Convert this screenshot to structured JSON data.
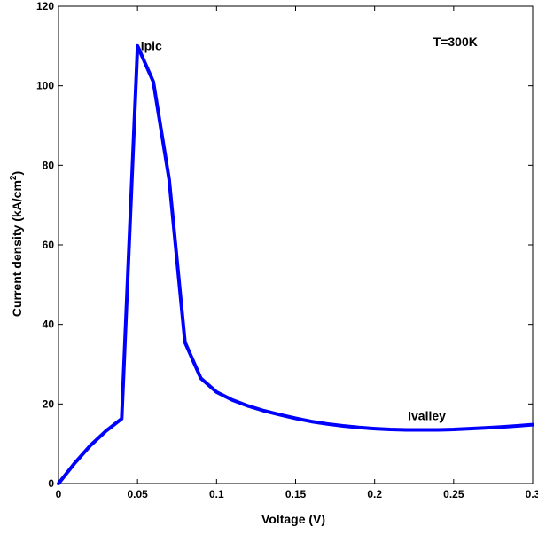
{
  "chart_data": {
    "type": "line",
    "title": "",
    "xlabel": "Voltage (V)",
    "ylabel_main": "Current density (kA/cm",
    "ylabel_sup": "2",
    "ylabel_close": ")",
    "xlim": [
      0,
      0.3
    ],
    "ylim": [
      0,
      120
    ],
    "x_ticks": [
      0,
      0.05,
      0.1,
      0.15,
      0.2,
      0.25,
      0.3
    ],
    "x_tick_labels": [
      "0",
      "0.05",
      "0.1",
      "0.15",
      "0.2",
      "0.25",
      "0.3"
    ],
    "y_ticks": [
      0,
      20,
      40,
      60,
      80,
      100,
      120
    ],
    "y_tick_labels": [
      "0",
      "20",
      "40",
      "60",
      "80",
      "100",
      "120"
    ],
    "grid": false,
    "legend": "none",
    "series": [
      {
        "color": "#0000ff",
        "x": [
          0,
          0.01,
          0.02,
          0.03,
          0.04,
          0.05,
          0.06,
          0.07,
          0.08,
          0.09,
          0.1,
          0.11,
          0.12,
          0.13,
          0.14,
          0.15,
          0.16,
          0.17,
          0.18,
          0.19,
          0.2,
          0.21,
          0.22,
          0.23,
          0.24,
          0.25,
          0.26,
          0.27,
          0.28,
          0.29,
          0.3
        ],
        "y": [
          0,
          5,
          9.5,
          13.2,
          16.3,
          110,
          101,
          76.5,
          35.5,
          26.5,
          23,
          21,
          19.5,
          18.3,
          17.3,
          16.4,
          15.6,
          15,
          14.5,
          14.1,
          13.8,
          13.6,
          13.5,
          13.5,
          13.5,
          13.6,
          13.8,
          14,
          14.2,
          14.5,
          14.8
        ]
      }
    ],
    "annotations": [
      {
        "text": "Ipic",
        "x": 0.052,
        "y": 109
      },
      {
        "text": "T=300K",
        "x": 0.237,
        "y": 110
      },
      {
        "text": "Ivalley",
        "x": 0.221,
        "y": 16
      }
    ]
  }
}
